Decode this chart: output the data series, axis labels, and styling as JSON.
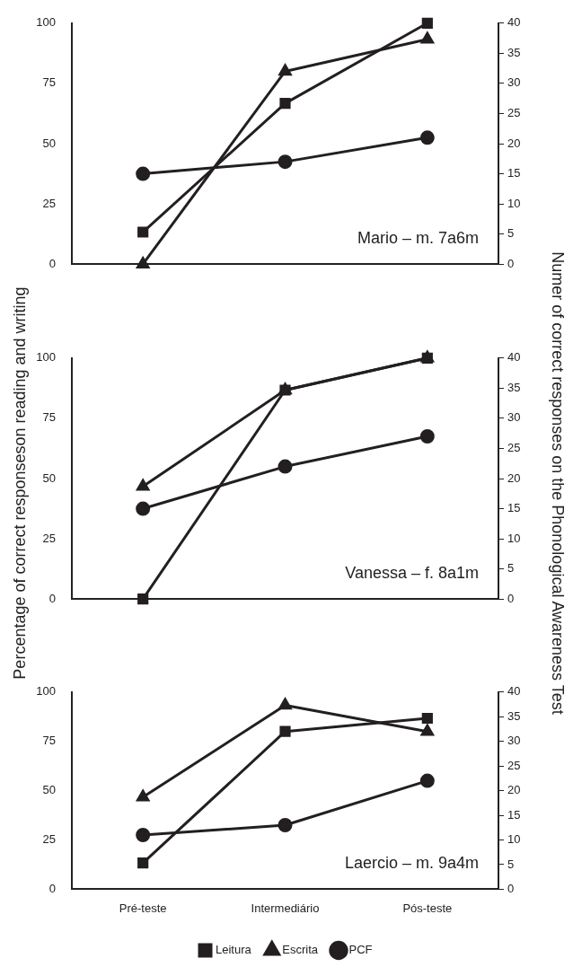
{
  "chart_data": [
    {
      "type": "line",
      "categories": [
        null,
        null,
        null
      ],
      "ylim": [
        0,
        100
      ],
      "yticks": [
        0,
        25,
        50,
        75,
        100
      ],
      "y2lim": [
        0,
        40
      ],
      "y2ticks": [
        0,
        5,
        10,
        15,
        20,
        25,
        30,
        35,
        40
      ],
      "tick_labels": "y",
      "grid": false,
      "legend": false,
      "annotations": [
        "Mario – m. 7a6m"
      ],
      "series": [
        {
          "color": "#231f20",
          "marker": "square",
          "values": [
            13.3,
            66.7,
            100
          ]
        },
        {
          "color": "#231f20",
          "marker": "triangle",
          "values": [
            0,
            80,
            93.3
          ]
        },
        {
          "color": "#231f20",
          "marker": "circle",
          "axis": "y2",
          "values": [
            15,
            17,
            21
          ]
        }
      ]
    },
    {
      "type": "line",
      "categories": [
        null,
        null,
        null
      ],
      "ylim": [
        0,
        100
      ],
      "yticks": [
        0,
        25,
        50,
        75,
        100
      ],
      "y2lim": [
        0,
        40
      ],
      "y2ticks": [
        0,
        5,
        10,
        15,
        20,
        25,
        30,
        35,
        40
      ],
      "tick_labels": "y",
      "grid": false,
      "legend": false,
      "annotations": [
        "Vanessa – f. 8a1m"
      ],
      "ylabel": "Percentage of correct responseson reading and writing",
      "y2label": "Numer of correct responses on the Phonological Awareness Test",
      "series": [
        {
          "color": "#231f20",
          "marker": "square",
          "values": [
            0,
            86.7,
            100
          ]
        },
        {
          "color": "#231f20",
          "marker": "triangle",
          "values": [
            46.7,
            86.7,
            100
          ]
        },
        {
          "color": "#231f20",
          "marker": "circle",
          "axis": "y2",
          "values": [
            15,
            22,
            27
          ]
        }
      ]
    },
    {
      "type": "line",
      "categories": [
        "Pré-teste",
        "Intermediário",
        "Pós-teste"
      ],
      "ylim": [
        0,
        100
      ],
      "yticks": [
        0,
        25,
        50,
        75,
        100
      ],
      "y2lim": [
        0,
        40
      ],
      "y2ticks": [
        0,
        5,
        10,
        15,
        20,
        25,
        30,
        35,
        40
      ],
      "grid": false,
      "legend": "bottom",
      "annotations": [
        "Laercio – m. 9a4m"
      ],
      "series": [
        {
          "name": "Leitura",
          "color": "#231f20",
          "marker": "square",
          "values": [
            13.3,
            80,
            86.7
          ]
        },
        {
          "name": "Escrita",
          "color": "#231f20",
          "marker": "triangle",
          "values": [
            46.7,
            93.3,
            80
          ]
        },
        {
          "name": "PCF",
          "color": "#231f20",
          "marker": "circle",
          "axis": "y2",
          "values": [
            11,
            13,
            22
          ]
        }
      ]
    }
  ]
}
